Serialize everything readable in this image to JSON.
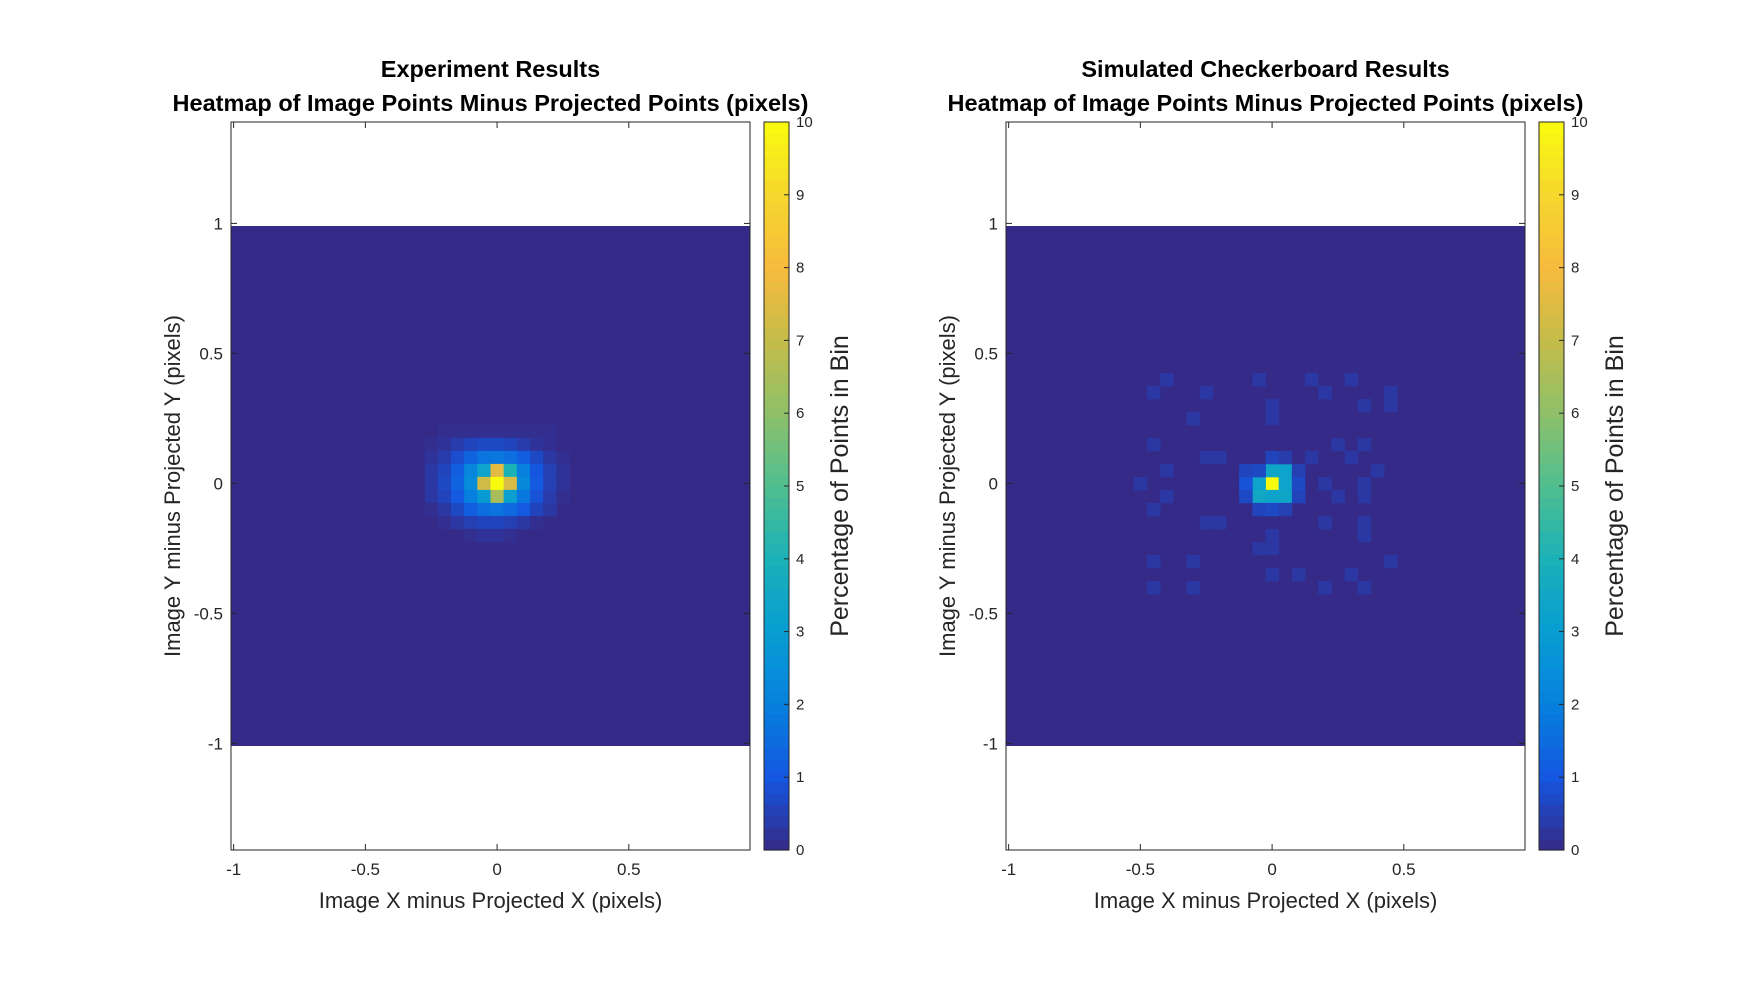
{
  "chart_data": [
    {
      "type": "heatmap",
      "title_lines": [
        "Experiment Results",
        "Heatmap of Image Points Minus Projected Points (pixels)"
      ],
      "xlabel": "Image X minus Projected X (pixels)",
      "ylabel": "Image Y minus Projected Y (pixels)",
      "colorbar_label": "Percentage of Points in Bin",
      "xlim": [
        -1.01,
        0.96
      ],
      "ylim": [
        -1.41,
        1.39
      ],
      "xticks": [
        -1,
        -0.5,
        0,
        0.5
      ],
      "xtick_labels": [
        "-1",
        "-0.5",
        "0",
        "0.5"
      ],
      "yticks": [
        -1,
        -0.5,
        0,
        0.5,
        1
      ],
      "ytick_labels": [
        "-1",
        "-0.5",
        "0",
        "0.5",
        "1"
      ],
      "clim": [
        0,
        10
      ],
      "cbticks": [
        0,
        1,
        2,
        3,
        4,
        5,
        6,
        7,
        8,
        9,
        10
      ],
      "cbtick_labels": [
        "0",
        "1",
        "2",
        "3",
        "4",
        "5",
        "6",
        "7",
        "8",
        "9",
        "10"
      ],
      "colormap": "parula",
      "grid": false,
      "bins": {
        "x_start": -1.01,
        "y_start": -1.01,
        "bin_size": 0.05,
        "nx": 40,
        "ny": 40,
        "background_value": 0
      },
      "cells": [
        [
          -0.2,
          0.2,
          0.1
        ],
        [
          -0.15,
          0.2,
          0.1
        ],
        [
          -0.1,
          0.2,
          0.1
        ],
        [
          -0.05,
          0.2,
          0.1
        ],
        [
          0,
          0.2,
          0.1
        ],
        [
          0.05,
          0.2,
          0.1
        ],
        [
          0.1,
          0.2,
          0.1
        ],
        [
          0.15,
          0.2,
          0.1
        ],
        [
          0.2,
          0.2,
          0.1
        ],
        [
          -0.25,
          0.15,
          0.1
        ],
        [
          -0.2,
          0.15,
          0.2
        ],
        [
          -0.15,
          0.15,
          0.4
        ],
        [
          -0.1,
          0.15,
          0.6
        ],
        [
          -0.05,
          0.15,
          0.7
        ],
        [
          0,
          0.15,
          0.7
        ],
        [
          0.05,
          0.15,
          0.6
        ],
        [
          0.1,
          0.15,
          0.4
        ],
        [
          0.15,
          0.15,
          0.2
        ],
        [
          0.2,
          0.15,
          0.1
        ],
        [
          -0.25,
          0.1,
          0.2
        ],
        [
          -0.2,
          0.1,
          0.4
        ],
        [
          -0.15,
          0.1,
          0.8
        ],
        [
          -0.1,
          0.1,
          1.3
        ],
        [
          -0.05,
          0.1,
          1.7
        ],
        [
          0,
          0.1,
          1.8
        ],
        [
          0.05,
          0.1,
          1.6
        ],
        [
          0.1,
          0.1,
          1.2
        ],
        [
          0.15,
          0.1,
          0.7
        ],
        [
          0.2,
          0.1,
          0.3
        ],
        [
          0.25,
          0.1,
          0.1
        ],
        [
          -0.25,
          0.05,
          0.3
        ],
        [
          -0.2,
          0.05,
          0.6
        ],
        [
          -0.15,
          0.05,
          1.2
        ],
        [
          -0.1,
          0.05,
          2.2
        ],
        [
          -0.05,
          0.05,
          3.3
        ],
        [
          0,
          0.05,
          7.6
        ],
        [
          0.05,
          0.05,
          4.0
        ],
        [
          0.1,
          0.05,
          2.0
        ],
        [
          0.15,
          0.05,
          1.0
        ],
        [
          0.2,
          0.05,
          0.5
        ],
        [
          0.25,
          0.05,
          0.2
        ],
        [
          -0.25,
          0,
          0.3
        ],
        [
          -0.2,
          0,
          0.7
        ],
        [
          -0.15,
          0,
          1.3
        ],
        [
          -0.1,
          0,
          2.4
        ],
        [
          -0.05,
          0,
          7.2
        ],
        [
          0,
          0,
          10
        ],
        [
          0.05,
          0,
          7.4
        ],
        [
          0.1,
          0,
          2.3
        ],
        [
          0.15,
          0,
          1.1
        ],
        [
          0.2,
          0,
          0.5
        ],
        [
          0.25,
          0,
          0.2
        ],
        [
          -0.25,
          -0.05,
          0.3
        ],
        [
          -0.2,
          -0.05,
          0.6
        ],
        [
          -0.15,
          -0.05,
          1.1
        ],
        [
          -0.1,
          -0.05,
          2.0
        ],
        [
          -0.05,
          -0.05,
          2.9
        ],
        [
          0,
          -0.05,
          6.5
        ],
        [
          0.05,
          -0.05,
          3.1
        ],
        [
          0.1,
          -0.05,
          1.8
        ],
        [
          0.15,
          -0.05,
          0.9
        ],
        [
          0.2,
          -0.05,
          0.4
        ],
        [
          0.25,
          -0.05,
          0.1
        ],
        [
          -0.25,
          -0.1,
          0.1
        ],
        [
          -0.2,
          -0.1,
          0.3
        ],
        [
          -0.15,
          -0.1,
          0.7
        ],
        [
          -0.1,
          -0.1,
          1.2
        ],
        [
          -0.05,
          -0.1,
          1.6
        ],
        [
          0,
          -0.1,
          1.7
        ],
        [
          0.05,
          -0.1,
          1.5
        ],
        [
          0.1,
          -0.1,
          1.1
        ],
        [
          0.15,
          -0.1,
          0.6
        ],
        [
          0.2,
          -0.1,
          0.3
        ],
        [
          -0.2,
          -0.15,
          0.1
        ],
        [
          -0.15,
          -0.15,
          0.3
        ],
        [
          -0.1,
          -0.15,
          0.5
        ],
        [
          -0.05,
          -0.15,
          0.6
        ],
        [
          0,
          -0.15,
          0.6
        ],
        [
          0.05,
          -0.15,
          0.5
        ],
        [
          0.1,
          -0.15,
          0.3
        ],
        [
          0.15,
          -0.15,
          0.1
        ],
        [
          -0.1,
          -0.2,
          0.1
        ],
        [
          -0.05,
          -0.2,
          0.2
        ],
        [
          0,
          -0.2,
          0.2
        ],
        [
          0.05,
          -0.2,
          0.1
        ]
      ]
    },
    {
      "type": "heatmap",
      "title_lines": [
        "Simulated Checkerboard Results",
        "Heatmap of Image Points Minus Projected Points (pixels)"
      ],
      "xlabel": "Image X minus Projected X (pixels)",
      "ylabel": "Image Y minus Projected Y (pixels)",
      "colorbar_label": "Percentage of Points in Bin",
      "xlim": [
        -1.01,
        0.96
      ],
      "ylim": [
        -1.41,
        1.39
      ],
      "xticks": [
        -1,
        -0.5,
        0,
        0.5
      ],
      "xtick_labels": [
        "-1",
        "-0.5",
        "0",
        "0.5"
      ],
      "yticks": [
        -1,
        -0.5,
        0,
        0.5,
        1
      ],
      "ytick_labels": [
        "-1",
        "-0.5",
        "0",
        "0.5",
        "1"
      ],
      "clim": [
        0,
        10
      ],
      "cbticks": [
        0,
        1,
        2,
        3,
        4,
        5,
        6,
        7,
        8,
        9,
        10
      ],
      "cbtick_labels": [
        "0",
        "1",
        "2",
        "3",
        "4",
        "5",
        "6",
        "7",
        "8",
        "9",
        "10"
      ],
      "colormap": "parula",
      "grid": false,
      "bins": {
        "x_start": -1.01,
        "y_start": -1.01,
        "bin_size": 0.05,
        "nx": 40,
        "ny": 40,
        "background_value": 0
      },
      "cells": [
        [
          0,
          0,
          10
        ],
        [
          -0.05,
          0,
          3.3
        ],
        [
          0.05,
          0,
          3.3
        ],
        [
          0,
          0.05,
          3.4
        ],
        [
          0.05,
          0.05,
          3.3
        ],
        [
          -0.05,
          -0.05,
          3.5
        ],
        [
          0,
          -0.05,
          3.3
        ],
        [
          0.05,
          -0.05,
          3.4
        ],
        [
          -0.05,
          0.05,
          0.7
        ],
        [
          -0.1,
          0.05,
          0.6
        ],
        [
          -0.1,
          0,
          0.9
        ],
        [
          -0.1,
          -0.05,
          0.7
        ],
        [
          0.1,
          0,
          0.7
        ],
        [
          0.1,
          0.05,
          0.5
        ],
        [
          0.1,
          -0.05,
          0.6
        ],
        [
          -0.05,
          -0.1,
          0.6
        ],
        [
          0,
          -0.1,
          0.7
        ],
        [
          0.05,
          -0.1,
          0.5
        ],
        [
          0,
          0.1,
          0.6
        ],
        [
          0.05,
          0.1,
          0.4
        ],
        [
          -0.4,
          0.4,
          0.3
        ],
        [
          -0.45,
          0.35,
          0.3
        ],
        [
          -0.25,
          0.35,
          0.3
        ],
        [
          -0.05,
          0.4,
          0.3
        ],
        [
          0.15,
          0.4,
          0.3
        ],
        [
          0.3,
          0.4,
          0.3
        ],
        [
          0.2,
          0.35,
          0.3
        ],
        [
          0.35,
          0.3,
          0.3
        ],
        [
          0.45,
          0.35,
          0.3
        ],
        [
          0.45,
          0.3,
          0.3
        ],
        [
          0,
          0.3,
          0.3
        ],
        [
          0,
          0.25,
          0.3
        ],
        [
          -0.3,
          0.25,
          0.3
        ],
        [
          -0.45,
          0.15,
          0.3
        ],
        [
          0.25,
          0.15,
          0.3
        ],
        [
          0.35,
          0.15,
          0.3
        ],
        [
          -0.25,
          0.1,
          0.3
        ],
        [
          -0.2,
          0.1,
          0.3
        ],
        [
          0.15,
          0.1,
          0.3
        ],
        [
          0.3,
          0.1,
          0.3
        ],
        [
          -0.5,
          0,
          0.3
        ],
        [
          -0.4,
          0.05,
          0.3
        ],
        [
          -0.4,
          -0.05,
          0.3
        ],
        [
          -0.45,
          -0.1,
          0.3
        ],
        [
          0.2,
          0,
          0.3
        ],
        [
          0.25,
          -0.05,
          0.3
        ],
        [
          0.35,
          0,
          0.3
        ],
        [
          0.4,
          0.05,
          0.3
        ],
        [
          0.35,
          -0.05,
          0.3
        ],
        [
          0.2,
          -0.15,
          0.3
        ],
        [
          -0.25,
          -0.15,
          0.3
        ],
        [
          -0.2,
          -0.15,
          0.3
        ],
        [
          0,
          -0.2,
          0.3
        ],
        [
          0,
          -0.25,
          0.3
        ],
        [
          -0.05,
          -0.25,
          0.3
        ],
        [
          0.35,
          -0.15,
          0.3
        ],
        [
          0.35,
          -0.2,
          0.3
        ],
        [
          -0.45,
          -0.3,
          0.3
        ],
        [
          -0.45,
          -0.4,
          0.3
        ],
        [
          -0.3,
          -0.3,
          0.3
        ],
        [
          0,
          -0.35,
          0.3
        ],
        [
          0.1,
          -0.35,
          0.3
        ],
        [
          0.2,
          -0.4,
          0.3
        ],
        [
          0.45,
          -0.3,
          0.3
        ],
        [
          -0.3,
          -0.4,
          0.3
        ],
        [
          0.3,
          -0.35,
          0.3
        ],
        [
          0.35,
          -0.4,
          0.3
        ]
      ]
    }
  ]
}
